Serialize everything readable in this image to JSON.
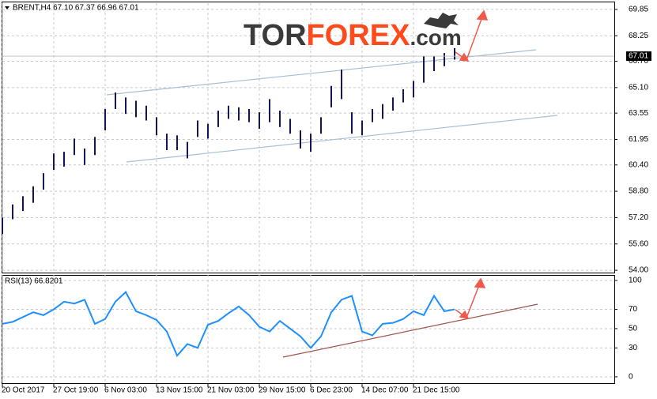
{
  "logo": {
    "part1": "TOR",
    "part2": "FOREX",
    "part3": ".com"
  },
  "chart_data": [
    {
      "type": "range-bar",
      "title": "BRENT,H4 67.10 67.37 66.96 67.01",
      "color": "#14145a",
      "categories": [
        "20 Oct 2017",
        null,
        null,
        null,
        null,
        "27 Oct 19:00",
        null,
        null,
        null,
        null,
        "6 Nov 03:00",
        null,
        null,
        null,
        null,
        "13 Nov 15:00",
        null,
        null,
        null,
        null,
        "21 Nov 03:00",
        null,
        null,
        null,
        null,
        "29 Nov 15:00",
        null,
        null,
        null,
        null,
        "6 Dec 23:00",
        null,
        null,
        null,
        null,
        "14 Dec 07:00",
        null,
        null,
        null,
        null,
        "21 Dec 15:00",
        null,
        null,
        null,
        null
      ],
      "high": [
        57.2,
        58.0,
        58.5,
        59.1,
        59.9,
        61.1,
        61.2,
        62.0,
        61.4,
        62.1,
        63.8,
        64.8,
        64.5,
        64.3,
        64.0,
        63.3,
        62.3,
        62.2,
        61.8,
        63.1,
        62.9,
        63.7,
        64.0,
        63.9,
        63.8,
        63.6,
        64.4,
        63.7,
        63.2,
        62.5,
        62.3,
        63.3,
        65.2,
        66.2,
        63.6,
        63.1,
        63.8,
        64.1,
        64.5,
        65.0,
        65.5,
        67.0,
        67.0,
        67.2,
        67.5
      ],
      "low": [
        56.2,
        57.1,
        57.6,
        58.1,
        58.9,
        60.1,
        60.3,
        61.0,
        60.4,
        61.0,
        62.5,
        63.8,
        63.5,
        63.3,
        63.1,
        62.2,
        61.3,
        61.3,
        60.8,
        62.1,
        62.0,
        62.7,
        63.2,
        63.1,
        63.0,
        62.6,
        63.0,
        62.7,
        62.3,
        61.4,
        61.2,
        62.3,
        63.9,
        64.4,
        62.3,
        62.2,
        63.0,
        63.2,
        63.7,
        64.2,
        64.5,
        65.4,
        66.1,
        66.4,
        66.8
      ],
      "last_price": {
        "value": 67.01,
        "label": "67.01"
      },
      "ylim": [
        53.86,
        70.23
      ],
      "yticks": [
        {
          "value": 69.85,
          "label": "69.85"
        },
        {
          "value": 68.25,
          "label": "68.25"
        },
        {
          "value": 66.7,
          "label": "66.70"
        },
        {
          "value": 65.1,
          "label": "65.10"
        },
        {
          "value": 63.55,
          "label": "63.55"
        },
        {
          "value": 61.95,
          "label": "61.95"
        },
        {
          "value": 60.4,
          "label": "60.40"
        },
        {
          "value": 58.8,
          "label": "58.80"
        },
        {
          "value": 57.2,
          "label": "57.20"
        },
        {
          "value": 55.6,
          "label": "55.60"
        },
        {
          "value": 54,
          "label": "54.00"
        }
      ],
      "grid": true
    },
    {
      "type": "line",
      "title": "RSI(13) 66.8201",
      "color": "#1e8fff",
      "values": [
        55,
        57,
        62,
        67,
        64,
        70,
        78,
        76,
        80,
        55,
        60,
        78,
        88,
        68,
        64,
        59,
        47,
        22,
        34,
        30,
        54,
        58,
        66,
        73,
        64,
        52,
        47,
        58,
        50,
        42,
        30,
        42,
        67,
        80,
        84,
        47,
        43,
        55,
        56,
        60,
        68,
        64,
        84,
        68,
        70
      ],
      "ylim": [
        -6.6,
        105.7
      ],
      "yticks": [
        100,
        70,
        50,
        30,
        0
      ],
      "grid": true
    }
  ]
}
